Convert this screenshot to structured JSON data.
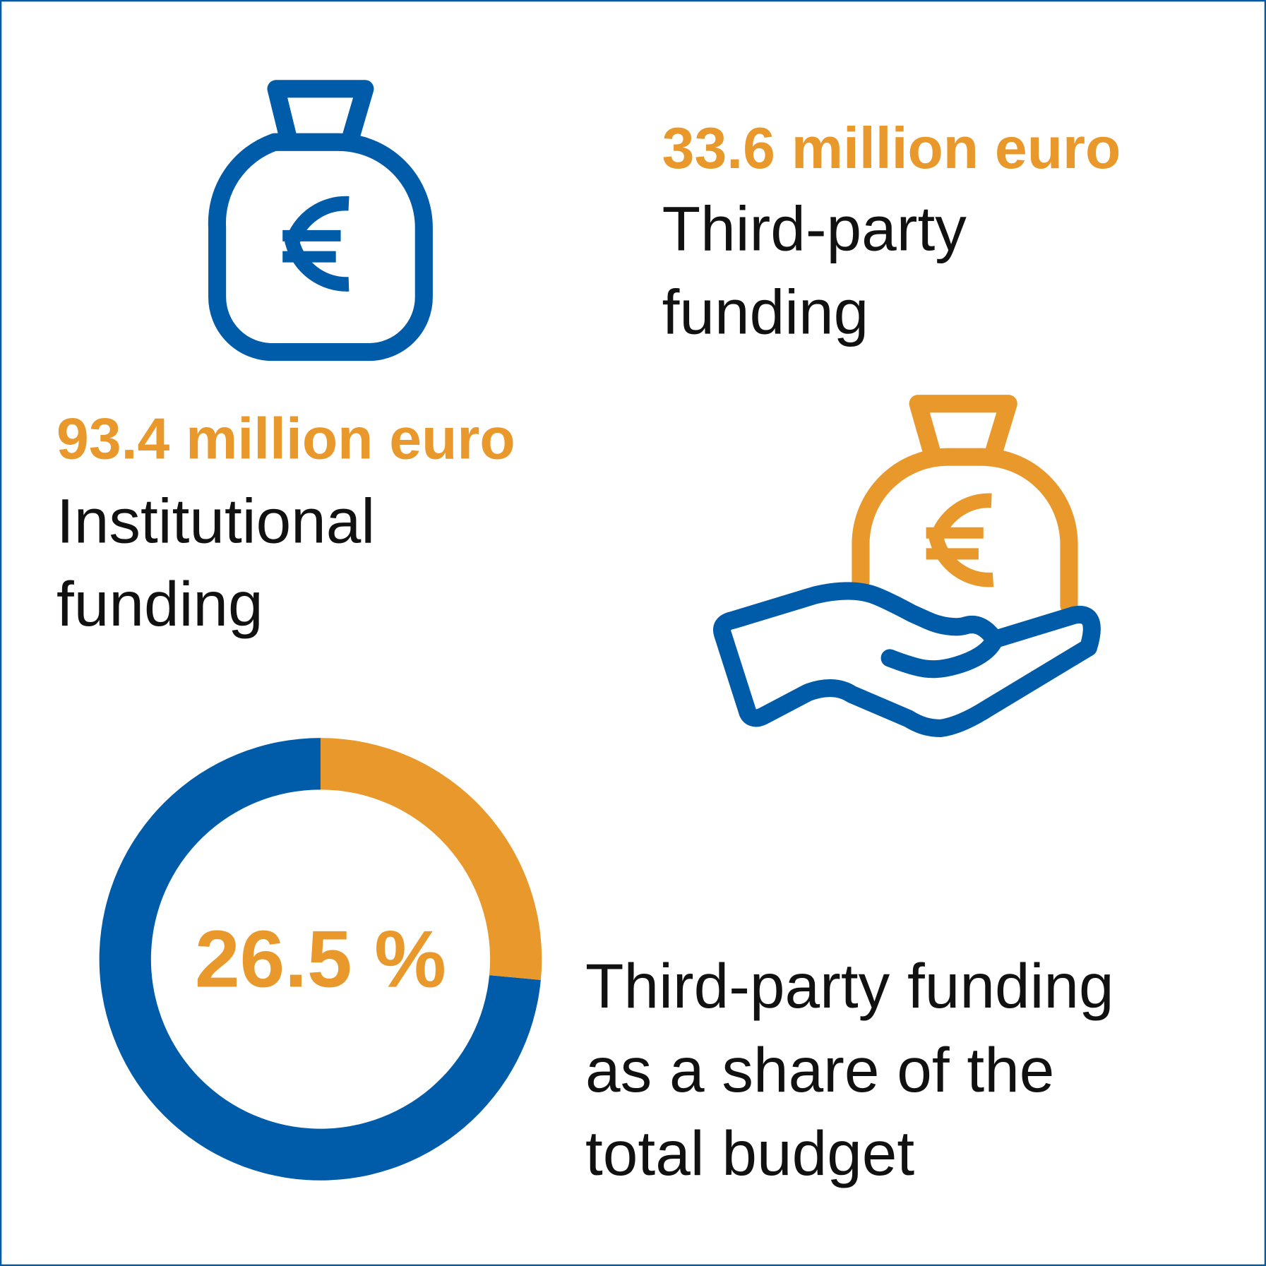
{
  "third_party": {
    "amount": "33.6 million euro",
    "label_lines": [
      "Third-party",
      "funding"
    ]
  },
  "institutional": {
    "amount": "93.4 million euro",
    "label_lines": [
      "Institutional",
      "funding"
    ]
  },
  "share": {
    "value": 26.5,
    "value_label": "26.5 %",
    "caption_lines": [
      "Third-party funding",
      "as a share of the",
      "total budget"
    ]
  }
}
